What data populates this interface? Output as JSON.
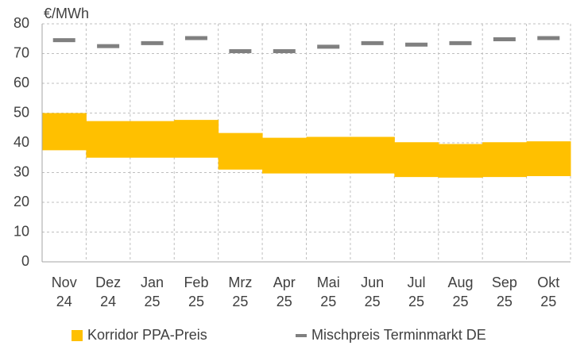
{
  "chart_data": {
    "type": "bar",
    "y_label": "€/MWh",
    "categories": [
      "Nov 24",
      "Dez 24",
      "Jan 25",
      "Feb 25",
      "Mrz 25",
      "Apr 25",
      "Mai 25",
      "Jun 25",
      "Jul 25",
      "Aug 25",
      "Sep 25",
      "Okt 25"
    ],
    "series": [
      {
        "name": "Korridor PPA-Preis",
        "type": "range-bar",
        "color": "#ffc000",
        "low": [
          37.5,
          35,
          35,
          35,
          31,
          29.7,
          29.7,
          29.7,
          28.5,
          28.3,
          28.5,
          28.8
        ],
        "high": [
          50,
          47.3,
          47.3,
          47.7,
          43.3,
          41.7,
          42,
          42,
          40.2,
          39.6,
          40.2,
          40.5
        ]
      },
      {
        "name": "Mischpreis Terminmarkt DE",
        "type": "dash",
        "color": "#808080",
        "values": [
          74.5,
          72.5,
          73.5,
          75.2,
          70.8,
          70.8,
          72.3,
          73.5,
          73,
          73.5,
          74.8,
          75.2
        ]
      }
    ],
    "ylim": [
      0,
      80
    ],
    "yticks": [
      0,
      10,
      20,
      30,
      40,
      50,
      60,
      70,
      80
    ],
    "grid": true
  }
}
